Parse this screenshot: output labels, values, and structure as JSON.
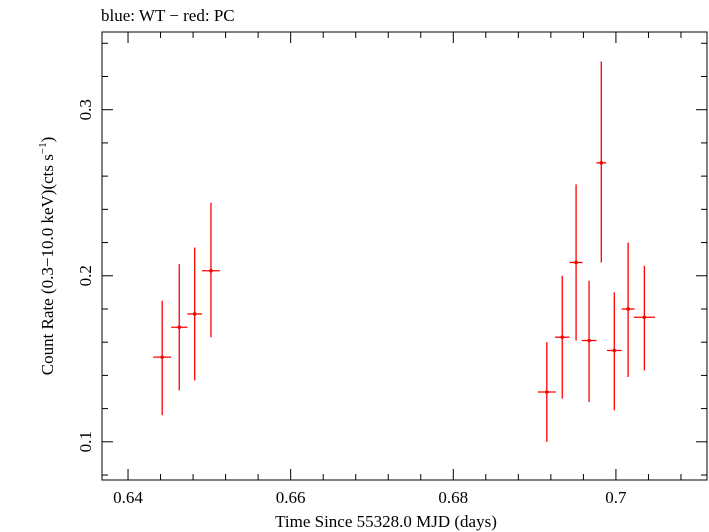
{
  "header": {
    "title": "blue: WT − red: PC"
  },
  "chart_data": {
    "type": "scatter",
    "title": "blue: WT − red: PC",
    "xlabel": "Time Since 55328.0 MJD (days)",
    "ylabel_main": "Count Rate (0.3−10.0 keV)(cts s",
    "ylabel_exp": "−1",
    "ylabel_end": ")",
    "xlim": [
      0.6368,
      0.7112
    ],
    "ylim": [
      0.077,
      0.3468
    ],
    "xticks": [
      0.64,
      0.66,
      0.68,
      0.7
    ],
    "xtick_labels": [
      "0.64",
      "0.66",
      "0.68",
      "0.7"
    ],
    "yticks": [
      0.1,
      0.2,
      0.3
    ],
    "ytick_labels": [
      "0.1",
      "0.2",
      "0.3"
    ],
    "grid": false,
    "series": [
      {
        "name": "PC",
        "color": "#ff0000",
        "points": [
          {
            "x": 0.6442,
            "xerr": 0.0011,
            "y": 0.151,
            "ylo": 0.116,
            "yhi": 0.185
          },
          {
            "x": 0.6463,
            "xerr": 0.001,
            "y": 0.169,
            "ylo": 0.131,
            "yhi": 0.207
          },
          {
            "x": 0.6482,
            "xerr": 0.0009,
            "y": 0.177,
            "ylo": 0.137,
            "yhi": 0.217
          },
          {
            "x": 0.6502,
            "xerr": 0.0011,
            "y": 0.203,
            "ylo": 0.163,
            "yhi": 0.244
          },
          {
            "x": 0.6915,
            "xerr": 0.0011,
            "y": 0.13,
            "ylo": 0.1,
            "yhi": 0.16
          },
          {
            "x": 0.6934,
            "xerr": 0.0009,
            "y": 0.163,
            "ylo": 0.126,
            "yhi": 0.2
          },
          {
            "x": 0.6951,
            "xerr": 0.0008,
            "y": 0.208,
            "ylo": 0.161,
            "yhi": 0.255
          },
          {
            "x": 0.6967,
            "xerr": 0.0009,
            "y": 0.161,
            "ylo": 0.124,
            "yhi": 0.197
          },
          {
            "x": 0.6982,
            "xerr": 0.0006,
            "y": 0.268,
            "ylo": 0.208,
            "yhi": 0.329
          },
          {
            "x": 0.6998,
            "xerr": 0.0009,
            "y": 0.155,
            "ylo": 0.119,
            "yhi": 0.19
          },
          {
            "x": 0.7015,
            "xerr": 0.0008,
            "y": 0.18,
            "ylo": 0.139,
            "yhi": 0.22
          },
          {
            "x": 0.7035,
            "xerr": 0.0013,
            "y": 0.175,
            "ylo": 0.143,
            "yhi": 0.206
          }
        ]
      }
    ]
  }
}
